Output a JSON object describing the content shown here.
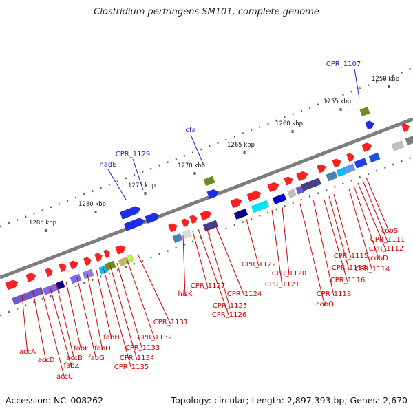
{
  "title": "Clostridium perfringens SM101, complete genome",
  "footer": {
    "accession": "Accession: NC_008262",
    "summary": "Topology: circular; Length: 2,897,393 bp; Genes: 2,670"
  },
  "colors": {
    "backbone": "#7d7d7d",
    "ticks": "#2e7d32",
    "forward_gene": "#ff2020",
    "reverse_gene": "#1e2ee8",
    "blue_label": "#1b1bcf",
    "red_label": "#cc0000"
  },
  "scale_ticks": [
    "1250 kbp",
    "1255 kbp",
    "1260 kbp",
    "1265 kbp",
    "1270 kbp",
    "1275 kbp",
    "1280 kbp",
    "1285 kbp"
  ],
  "blue_labels": [
    "CPR_1107",
    "cfa",
    "CPR_1129",
    "nadE"
  ],
  "red_labels": [
    "cobS",
    "CPR_1111",
    "CPR_1112",
    "cobD",
    "CPR_1114",
    "CPR_1115",
    "CPR_1117",
    "CPR_1116",
    "CPR_1118",
    "cobQ",
    "CPR_1120",
    "CPR_1121",
    "CPR_1122",
    "CPR_1124",
    "CPR_1125",
    "CPR_1126",
    "CPR_1127",
    "hisK",
    "CPR_1131",
    "CPR_1132",
    "CPR_1133",
    "CPR_1134",
    "CPR_1135",
    "fabH",
    "fabD",
    "fabG",
    "fabF",
    "accB",
    "fabZ",
    "accC",
    "accD",
    "accA"
  ]
}
